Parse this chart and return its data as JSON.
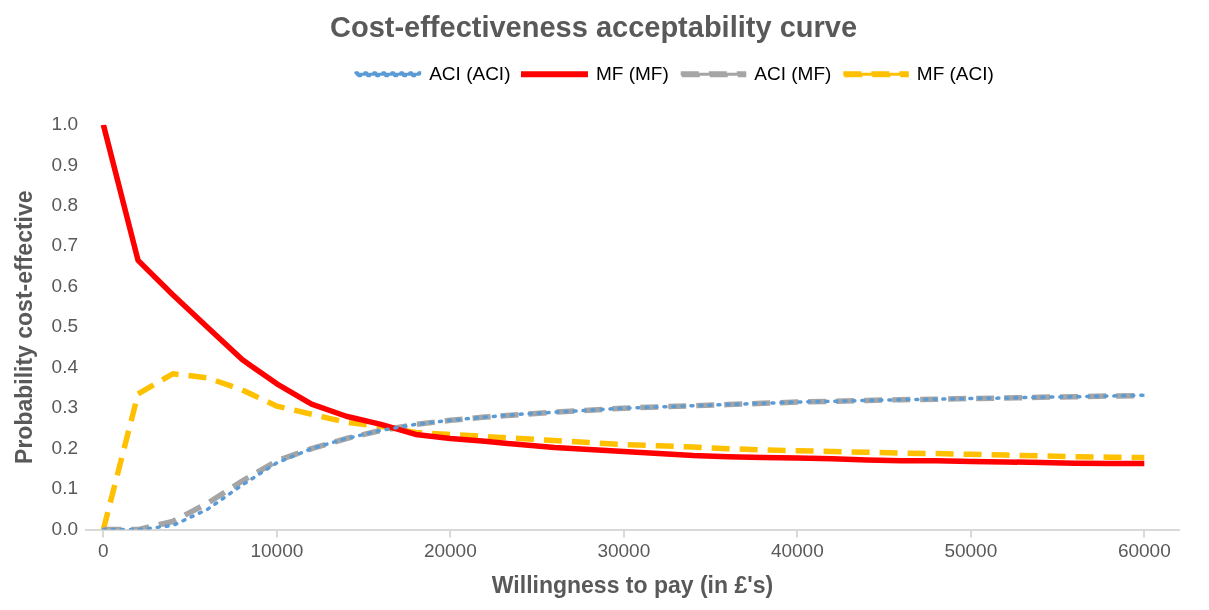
{
  "chart_data": {
    "type": "line",
    "title": "Cost-effectiveness acceptability curve",
    "xlabel": "Willingness to pay (in £'s)",
    "ylabel": "Probability cost-effective",
    "x": [
      0,
      2000,
      4000,
      6000,
      8000,
      10000,
      12000,
      14000,
      16000,
      18000,
      20000,
      22000,
      24000,
      26000,
      28000,
      30000,
      32000,
      34000,
      36000,
      38000,
      40000,
      42000,
      44000,
      46000,
      48000,
      50000,
      52000,
      54000,
      56000,
      58000,
      60000
    ],
    "series": [
      {
        "name": "ACI (ACI)",
        "color": "#5b9bd5",
        "line_style": "dotted",
        "values": [
          0,
          0,
          0.01,
          0.05,
          0.11,
          0.165,
          0.2,
          0.225,
          0.245,
          0.26,
          0.27,
          0.278,
          0.285,
          0.29,
          0.295,
          0.3,
          0.303,
          0.306,
          0.309,
          0.312,
          0.315,
          0.317,
          0.319,
          0.321,
          0.322,
          0.324,
          0.325,
          0.327,
          0.328,
          0.33,
          0.332
        ]
      },
      {
        "name": "MF (MF)",
        "color": "#ff0000",
        "line_style": "solid",
        "values": [
          1.0,
          0.665,
          0.58,
          0.5,
          0.42,
          0.36,
          0.31,
          0.28,
          0.26,
          0.235,
          0.225,
          0.218,
          0.21,
          0.203,
          0.198,
          0.193,
          0.188,
          0.183,
          0.18,
          0.178,
          0.177,
          0.175,
          0.172,
          0.17,
          0.17,
          0.168,
          0.167,
          0.166,
          0.164,
          0.163,
          0.163
        ]
      },
      {
        "name": "ACI (MF)",
        "color": "#a5a5a5",
        "line_style": "dashed",
        "values": [
          0,
          0,
          0.02,
          0.065,
          0.12,
          0.17,
          0.2,
          0.225,
          0.245,
          0.26,
          0.27,
          0.278,
          0.284,
          0.29,
          0.295,
          0.3,
          0.303,
          0.306,
          0.309,
          0.312,
          0.315,
          0.317,
          0.319,
          0.321,
          0.322,
          0.324,
          0.325,
          0.327,
          0.328,
          0.33,
          0.331
        ]
      },
      {
        "name": "MF (ACI)",
        "color": "#ffc000",
        "line_style": "dashed",
        "values": [
          0,
          0.335,
          0.385,
          0.375,
          0.345,
          0.305,
          0.285,
          0.265,
          0.255,
          0.24,
          0.235,
          0.23,
          0.225,
          0.22,
          0.215,
          0.21,
          0.207,
          0.204,
          0.2,
          0.197,
          0.195,
          0.193,
          0.191,
          0.189,
          0.188,
          0.186,
          0.184,
          0.182,
          0.18,
          0.179,
          0.178
        ]
      }
    ],
    "xlim": [
      -1000,
      62000
    ],
    "xticks": [
      0,
      10000,
      20000,
      30000,
      40000,
      50000,
      60000
    ],
    "ylim": [
      0,
      1
    ],
    "yticks": [
      {
        "value": 0,
        "label": "0.0"
      },
      {
        "value": 0.1,
        "label": "0.1"
      },
      {
        "value": 0.2,
        "label": "0.2"
      },
      {
        "value": 0.3,
        "label": "0.3"
      },
      {
        "value": 0.4,
        "label": "0.4"
      },
      {
        "value": 0.5,
        "label": "0.5"
      },
      {
        "value": 0.6,
        "label": "0.6"
      },
      {
        "value": 0.7,
        "label": "0.7"
      },
      {
        "value": 0.8,
        "label": "0.8"
      },
      {
        "value": 0.9,
        "label": "0.9"
      },
      {
        "value": 1,
        "label": "1.0"
      }
    ],
    "grid": false,
    "legend": "top",
    "marker": "none"
  }
}
